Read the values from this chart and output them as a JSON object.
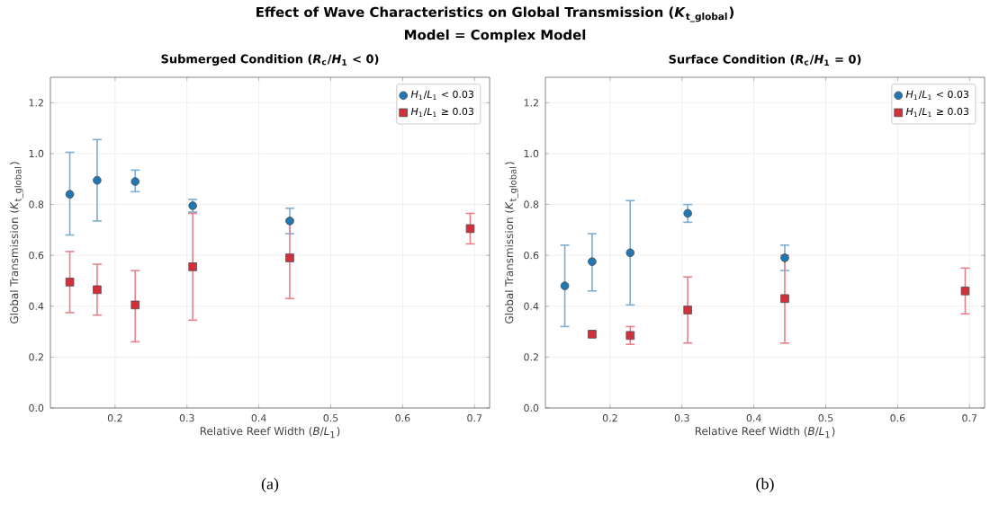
{
  "chart_data": [
    {
      "type": "scatter",
      "title": "Submerged Condition (*R*$_{c}$/*H*$_{1}$ < 0)",
      "xlabel": "Relative Reef Width (*B*/*L*$_{1}$)",
      "ylabel": "Global Transmission (*K*$_{t_global}$)",
      "annotations": [
        "Effect of Wave Characteristics on Global Transmission (*K*$_{t_global}$)",
        "Model = Complex Model",
        "(a)"
      ],
      "xlim": [
        0.11,
        0.721
      ],
      "ylim": [
        0,
        1.3
      ],
      "xticks": [
        0.2,
        0.3,
        0.4,
        0.5,
        0.6,
        0.7
      ],
      "yticks": [
        {
          "value": 0,
          "label": "0.0"
        },
        {
          "value": 0.2,
          "label": "0.2"
        },
        {
          "value": 0.4,
          "label": "0.4"
        },
        {
          "value": 0.6,
          "label": "0.6"
        },
        {
          "value": 0.8,
          "label": "0.8"
        },
        {
          "value": 1.0,
          "label": "1.0"
        },
        {
          "value": 1.2,
          "label": "1.2"
        }
      ],
      "grid": true,
      "legend": "top right",
      "series": [
        {
          "name": "*H*$_{1}$/*L*$_{1}$ < 0.03",
          "color": "#1f77b4",
          "marker": "circle",
          "x": [
            0.137,
            0.175,
            0.228,
            0.308,
            0.443
          ],
          "values": [
            0.84,
            0.895,
            0.89,
            0.795,
            0.735
          ],
          "errors": [
            [
              0.68,
              1.005
            ],
            [
              0.735,
              1.055
            ],
            [
              0.85,
              0.935
            ],
            [
              0.77,
              0.82
            ],
            [
              0.685,
              0.785
            ]
          ]
        },
        {
          "name": "*H*$_{1}$/*L*$_{1}$ ≥ 0.03",
          "color": "#d62f3c",
          "marker": "square",
          "x": [
            0.137,
            0.175,
            0.228,
            0.308,
            0.443,
            0.694
          ],
          "values": [
            0.495,
            0.465,
            0.405,
            0.555,
            0.59,
            0.705
          ],
          "errors": [
            [
              0.375,
              0.615
            ],
            [
              0.365,
              0.565
            ],
            [
              0.26,
              0.54
            ],
            [
              0.345,
              0.765
            ],
            [
              0.43,
              0.74
            ],
            [
              0.645,
              0.765
            ]
          ]
        }
      ]
    },
    {
      "type": "scatter",
      "title": "Surface Condition (*R*$_{c}$/*H*$_{1}$ = 0)",
      "xlabel": "Relative Reef Width (*B*/*L*$_{1}$)",
      "ylabel": "Global Transmission (*K*$_{t_global}$)",
      "annotations": [
        "(b)"
      ],
      "xlim": [
        0.11,
        0.721
      ],
      "ylim": [
        0,
        1.3
      ],
      "xticks": [
        0.2,
        0.3,
        0.4,
        0.5,
        0.6,
        0.7
      ],
      "yticks": [
        {
          "value": 0,
          "label": "0.0"
        },
        {
          "value": 0.2,
          "label": "0.2"
        },
        {
          "value": 0.4,
          "label": "0.4"
        },
        {
          "value": 0.6,
          "label": "0.6"
        },
        {
          "value": 0.8,
          "label": "0.8"
        },
        {
          "value": 1.0,
          "label": "1.0"
        },
        {
          "value": 1.2,
          "label": "1.2"
        }
      ],
      "grid": true,
      "legend": "top right",
      "series": [
        {
          "name": "*H*$_{1}$/*L*$_{1}$ < 0.03",
          "color": "#1f77b4",
          "marker": "circle",
          "x": [
            0.137,
            0.175,
            0.228,
            0.308,
            0.443
          ],
          "values": [
            0.48,
            0.575,
            0.61,
            0.765,
            0.59
          ],
          "errors": [
            [
              0.32,
              0.64
            ],
            [
              0.46,
              0.685
            ],
            [
              0.405,
              0.815
            ],
            [
              0.73,
              0.8
            ],
            [
              0.54,
              0.64
            ]
          ]
        },
        {
          "name": "*H*$_{1}$/*L*$_{1}$ ≥ 0.03",
          "color": "#d62f3c",
          "marker": "square",
          "x": [
            0.175,
            0.228,
            0.308,
            0.443,
            0.694
          ],
          "values": [
            0.29,
            0.285,
            0.385,
            0.43,
            0.46
          ],
          "errors": [
            [
              0.28,
              0.3
            ],
            [
              0.25,
              0.32
            ],
            [
              0.255,
              0.515
            ],
            [
              0.255,
              0.6
            ],
            [
              0.37,
              0.55
            ]
          ]
        }
      ]
    }
  ]
}
